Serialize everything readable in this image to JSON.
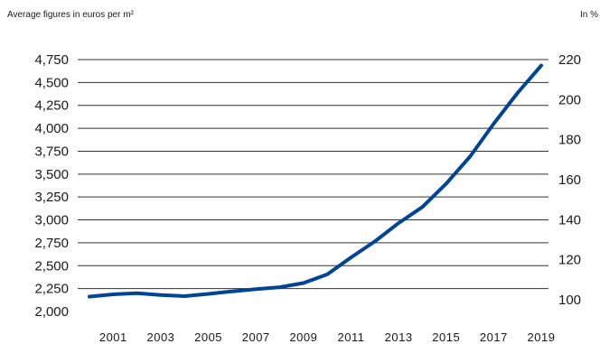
{
  "chart_data": {
    "type": "line",
    "left_axis_label": "Average figures in euros per m²",
    "right_axis_label": "In %",
    "title": "",
    "y_left": {
      "min": 2000,
      "max": 4750,
      "ticks": [
        "4,750",
        "4,500",
        "4,250",
        "4,000",
        "3,750",
        "3,500",
        "3,250",
        "3,000",
        "2,750",
        "2,500",
        "2,250",
        "2,000"
      ]
    },
    "y_right": {
      "ticks": [
        "220",
        "200",
        "180",
        "160",
        "140",
        "120",
        "100"
      ]
    },
    "x_range": [
      2000,
      2019
    ],
    "x_ticks": [
      "2001",
      "2003",
      "2005",
      "2007",
      "2009",
      "2011",
      "2013",
      "2015",
      "2017",
      "2019"
    ],
    "grid": "horizontal",
    "series": [
      {
        "color": "#004494",
        "x": [
          2000,
          2001,
          2002,
          2003,
          2004,
          2005,
          2006,
          2007,
          2008,
          2009,
          2010,
          2011,
          2012,
          2013,
          2014,
          2015,
          2016,
          2017,
          2018,
          2019
        ],
        "y": [
          2163,
          2187,
          2200,
          2180,
          2168,
          2192,
          2220,
          2243,
          2265,
          2310,
          2405,
          2590,
          2765,
          2965,
          3140,
          3395,
          3690,
          4050,
          4385,
          4685
        ]
      }
    ]
  }
}
